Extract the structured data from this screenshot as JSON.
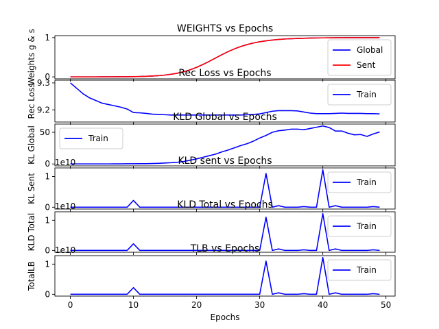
{
  "figure": {
    "xlabel": "Epochs",
    "xticks": [
      0,
      10,
      20,
      30,
      40,
      50
    ]
  },
  "chart_data": [
    {
      "type": "line",
      "title": "WEIGHTS vs Epochs",
      "ylabel": "Weights g & s",
      "xlim": [
        -2.45,
        51.45
      ],
      "ylim": [
        -0.05,
        1.05
      ],
      "yticks": [
        {
          "v": 0,
          "label": "0"
        },
        {
          "v": 1,
          "label": "1"
        }
      ],
      "legend_position": "lower-right",
      "series": [
        {
          "name": "Global",
          "color": "#0000ff",
          "x": [
            0,
            1,
            2,
            3,
            4,
            5,
            6,
            7,
            8,
            9,
            10,
            11,
            12,
            13,
            14,
            15,
            16,
            17,
            18,
            19,
            20,
            21,
            22,
            23,
            24,
            25,
            26,
            27,
            28,
            29,
            30,
            31,
            32,
            33,
            34,
            35,
            36,
            37,
            38,
            39,
            40,
            41,
            42,
            43,
            44,
            45,
            46,
            47,
            48,
            49
          ],
          "values": [
            0.0,
            0.0,
            0.0,
            0.0,
            0.0,
            0.001,
            0.001,
            0.002,
            0.003,
            0.004,
            0.006,
            0.009,
            0.014,
            0.021,
            0.031,
            0.046,
            0.067,
            0.095,
            0.132,
            0.182,
            0.242,
            0.315,
            0.394,
            0.48,
            0.564,
            0.643,
            0.713,
            0.773,
            0.822,
            0.862,
            0.894,
            0.918,
            0.938,
            0.953,
            0.965,
            0.973,
            0.979,
            0.984,
            0.988,
            0.991,
            0.993,
            0.995,
            0.996,
            0.997,
            0.998,
            0.998,
            0.999,
            0.999,
            0.999,
            0.999
          ]
        },
        {
          "name": "Sent",
          "color": "#ff0000",
          "x": [
            0,
            1,
            2,
            3,
            4,
            5,
            6,
            7,
            8,
            9,
            10,
            11,
            12,
            13,
            14,
            15,
            16,
            17,
            18,
            19,
            20,
            21,
            22,
            23,
            24,
            25,
            26,
            27,
            28,
            29,
            30,
            31,
            32,
            33,
            34,
            35,
            36,
            37,
            38,
            39,
            40,
            41,
            42,
            43,
            44,
            45,
            46,
            47,
            48,
            49
          ],
          "values": [
            0.0,
            0.0,
            0.0,
            0.0,
            0.0,
            0.001,
            0.001,
            0.002,
            0.003,
            0.004,
            0.006,
            0.009,
            0.014,
            0.021,
            0.031,
            0.046,
            0.067,
            0.095,
            0.132,
            0.182,
            0.242,
            0.315,
            0.394,
            0.48,
            0.564,
            0.643,
            0.713,
            0.773,
            0.822,
            0.862,
            0.894,
            0.918,
            0.938,
            0.953,
            0.965,
            0.973,
            0.979,
            0.984,
            0.988,
            0.991,
            0.993,
            0.995,
            0.996,
            0.997,
            0.998,
            0.998,
            0.999,
            0.999,
            0.999,
            0.999
          ]
        }
      ]
    },
    {
      "type": "line",
      "title": "Rec Loss vs Epochs",
      "ylabel": "Rec Loss",
      "xlim": [
        -2.45,
        51.45
      ],
      "ylim": [
        9.155,
        9.31
      ],
      "yticks": [
        {
          "v": 9.2,
          "label": "9.2"
        },
        {
          "v": 9.3,
          "label": "9.3"
        }
      ],
      "legend_position": "upper-right",
      "series": [
        {
          "name": "Train",
          "color": "#0000ff",
          "x": [
            0,
            1,
            2,
            3,
            4,
            5,
            6,
            7,
            8,
            9,
            10,
            11,
            12,
            13,
            14,
            15,
            16,
            17,
            18,
            19,
            20,
            21,
            22,
            23,
            24,
            25,
            26,
            27,
            28,
            29,
            30,
            31,
            32,
            33,
            34,
            35,
            36,
            37,
            38,
            39,
            40,
            41,
            42,
            43,
            44,
            45,
            46,
            47,
            48,
            49
          ],
          "values": [
            9.3,
            9.28,
            9.26,
            9.245,
            9.235,
            9.225,
            9.22,
            9.215,
            9.21,
            9.203,
            9.19,
            9.189,
            9.187,
            9.184,
            9.183,
            9.182,
            9.181,
            9.181,
            9.181,
            9.181,
            9.181,
            9.181,
            9.181,
            9.181,
            9.181,
            9.181,
            9.181,
            9.181,
            9.182,
            9.183,
            9.185,
            9.19,
            9.195,
            9.197,
            9.197,
            9.197,
            9.196,
            9.192,
            9.188,
            9.186,
            9.186,
            9.186,
            9.187,
            9.188,
            9.187,
            9.187,
            9.187,
            9.186,
            9.186,
            9.185
          ]
        }
      ]
    },
    {
      "type": "line",
      "title": "KLD Global vs Epochs",
      "ylabel": "KL Global",
      "xlim": [
        -2.45,
        51.45
      ],
      "ylim": [
        -3,
        63
      ],
      "yticks": [
        {
          "v": 0,
          "label": "0"
        },
        {
          "v": 50,
          "label": "50"
        }
      ],
      "legend_position": "upper-left",
      "series": [
        {
          "name": "Train",
          "color": "#0000ff",
          "x": [
            0,
            1,
            2,
            3,
            4,
            5,
            6,
            7,
            8,
            9,
            10,
            11,
            12,
            13,
            14,
            15,
            16,
            17,
            18,
            19,
            20,
            21,
            22,
            23,
            24,
            25,
            26,
            27,
            28,
            29,
            30,
            31,
            32,
            33,
            34,
            35,
            36,
            37,
            38,
            39,
            40,
            41,
            42,
            43,
            44,
            45,
            46,
            47,
            48,
            49
          ],
          "values": [
            0.1,
            0.1,
            0.1,
            0.1,
            0.1,
            0.1,
            0.1,
            0.2,
            0.2,
            0.3,
            0.3,
            0.4,
            0.5,
            0.7,
            1.0,
            1.5,
            2.0,
            2.8,
            4.0,
            6.0,
            8.0,
            10.5,
            13.0,
            15.5,
            19.0,
            22.0,
            25.5,
            29.0,
            32.0,
            36.0,
            41.0,
            45.0,
            50.0,
            52.5,
            53.5,
            55.0,
            55.0,
            54.0,
            56.0,
            58.0,
            60.0,
            57.5,
            52.0,
            52.0,
            48.5,
            46.0,
            46.5,
            43.5,
            47.5,
            50.5
          ]
        }
      ]
    },
    {
      "type": "line",
      "title": "KLD sent vs Epochs",
      "ylabel": "KL Sent",
      "offset_text": "1e10",
      "xlim": [
        -2.45,
        51.45
      ],
      "ylim": [
        -0.06,
        1.28
      ],
      "yticks": [
        {
          "v": 0,
          "label": "0"
        },
        {
          "v": 1,
          "label": "1"
        }
      ],
      "legend_position": "upper-right",
      "series": [
        {
          "name": "Train",
          "color": "#0000ff",
          "x": [
            0,
            1,
            2,
            3,
            4,
            5,
            6,
            7,
            8,
            9,
            10,
            11,
            12,
            13,
            14,
            15,
            16,
            17,
            18,
            19,
            20,
            21,
            22,
            23,
            24,
            25,
            26,
            27,
            28,
            29,
            30,
            31,
            32,
            33,
            34,
            35,
            36,
            37,
            38,
            39,
            40,
            41,
            42,
            43,
            44,
            45,
            46,
            47,
            48,
            49
          ],
          "values": [
            0,
            0,
            0,
            0,
            0,
            0,
            0,
            0,
            0,
            0,
            0.22,
            0,
            0,
            0,
            0,
            0,
            0,
            0,
            0,
            0,
            0,
            0,
            0,
            0,
            0,
            0,
            0,
            0,
            0,
            0,
            0,
            1.1,
            0,
            0.05,
            0,
            0,
            0,
            0.02,
            0,
            0,
            1.22,
            0,
            0.05,
            0,
            0,
            0,
            0,
            0,
            0.02,
            0
          ]
        }
      ]
    },
    {
      "type": "line",
      "title": "KLD Total vs Epochs",
      "ylabel": "KLD Total",
      "offset_text": "1e10",
      "xlim": [
        -2.45,
        51.45
      ],
      "ylim": [
        -0.06,
        1.28
      ],
      "yticks": [
        {
          "v": 0,
          "label": "0"
        },
        {
          "v": 1,
          "label": "1"
        }
      ],
      "legend_position": "upper-right",
      "series": [
        {
          "name": "Train",
          "color": "#0000ff",
          "x": [
            0,
            1,
            2,
            3,
            4,
            5,
            6,
            7,
            8,
            9,
            10,
            11,
            12,
            13,
            14,
            15,
            16,
            17,
            18,
            19,
            20,
            21,
            22,
            23,
            24,
            25,
            26,
            27,
            28,
            29,
            30,
            31,
            32,
            33,
            34,
            35,
            36,
            37,
            38,
            39,
            40,
            41,
            42,
            43,
            44,
            45,
            46,
            47,
            48,
            49
          ],
          "values": [
            0,
            0,
            0,
            0,
            0,
            0,
            0,
            0,
            0,
            0,
            0.22,
            0,
            0,
            0,
            0,
            0,
            0,
            0,
            0,
            0,
            0,
            0,
            0,
            0,
            0,
            0,
            0,
            0,
            0,
            0,
            0,
            1.1,
            0,
            0.05,
            0,
            0,
            0,
            0.02,
            0,
            0,
            1.22,
            0,
            0.05,
            0,
            0,
            0,
            0,
            0,
            0.02,
            0
          ]
        }
      ]
    },
    {
      "type": "line",
      "title": "TLB vs Epochs",
      "ylabel": "TotalLB",
      "offset_text": "1e10",
      "xlim": [
        -2.45,
        51.45
      ],
      "ylim": [
        -0.06,
        1.28
      ],
      "yticks": [
        {
          "v": 0,
          "label": "0"
        },
        {
          "v": 1,
          "label": "1"
        }
      ],
      "legend_position": "upper-right",
      "series": [
        {
          "name": "Train",
          "color": "#0000ff",
          "x": [
            0,
            1,
            2,
            3,
            4,
            5,
            6,
            7,
            8,
            9,
            10,
            11,
            12,
            13,
            14,
            15,
            16,
            17,
            18,
            19,
            20,
            21,
            22,
            23,
            24,
            25,
            26,
            27,
            28,
            29,
            30,
            31,
            32,
            33,
            34,
            35,
            36,
            37,
            38,
            39,
            40,
            41,
            42,
            43,
            44,
            45,
            46,
            47,
            48,
            49
          ],
          "values": [
            0,
            0,
            0,
            0,
            0,
            0,
            0,
            0,
            0,
            0,
            0.22,
            0,
            0,
            0,
            0,
            0,
            0,
            0,
            0,
            0,
            0,
            0,
            0,
            0,
            0,
            0,
            0,
            0,
            0,
            0,
            0,
            1.1,
            0,
            0.05,
            0,
            0,
            0,
            0.02,
            0,
            0,
            1.22,
            0,
            0.05,
            0,
            0,
            0,
            0,
            0,
            0.02,
            0
          ]
        }
      ]
    }
  ]
}
